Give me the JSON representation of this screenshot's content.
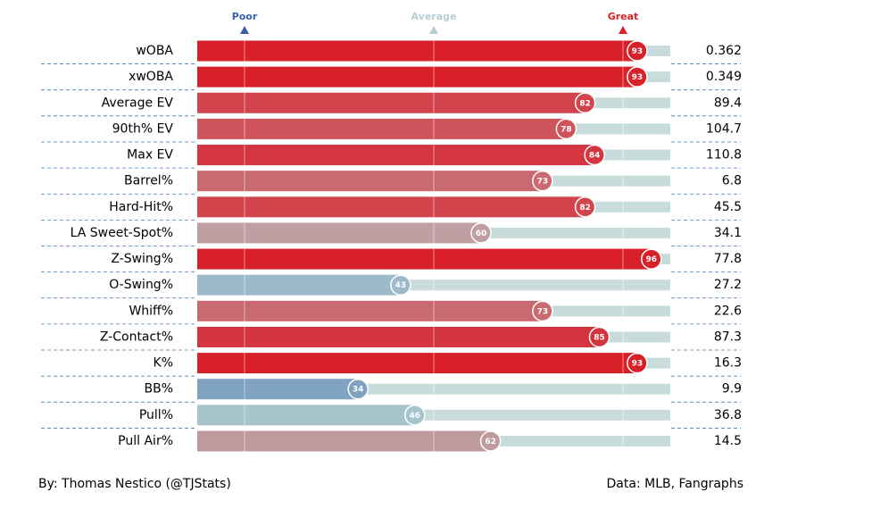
{
  "chart_data": {
    "type": "bar",
    "orientation": "horizontal",
    "categories": [
      "wOBA",
      "xwOBA",
      "Average EV",
      "90th% EV",
      "Max EV",
      "Barrel%",
      "Hard-Hit%",
      "LA Sweet-Spot%",
      "Z-Swing%",
      "O-Swing%",
      "Whiff%",
      "Z-Contact%",
      "K%",
      "BB%",
      "Pull%",
      "Pull Air%"
    ],
    "values": [
      93,
      93,
      82,
      78,
      84,
      73,
      82,
      60,
      96,
      43,
      73,
      85,
      93,
      34,
      46,
      62
    ],
    "colors": [
      "#d82028",
      "#d82028",
      "#d1444c",
      "#cf535b",
      "#d3363f",
      "#c96a70",
      "#d1444c",
      "#bf9fa2",
      "#d82028",
      "#9cbbca",
      "#c96a70",
      "#d4343d",
      "#d82028",
      "#7fa3c0",
      "#a7c3cc",
      "#bf9a9d"
    ],
    "stat_values": [
      0.362,
      0.349,
      89.4,
      104.7,
      110.8,
      6.8,
      45.5,
      34.1,
      77.8,
      27.2,
      22.6,
      87.3,
      16.3,
      9.9,
      36.8,
      14.5
    ],
    "xlim": [
      0,
      100
    ],
    "xticks": [
      {
        "value": 10,
        "label": "Poor"
      },
      {
        "value": 50,
        "label": "Average"
      },
      {
        "value": 90,
        "label": "Great"
      }
    ],
    "xtick_colors": [
      "#3a5fa8",
      "#b7cdd6",
      "#d8232a"
    ],
    "track_color": "#c8dcdc",
    "grid": true,
    "footer_left": "By: Thomas Nestico (@TJStats)",
    "footer_right": "Data: MLB, Fangraphs"
  }
}
